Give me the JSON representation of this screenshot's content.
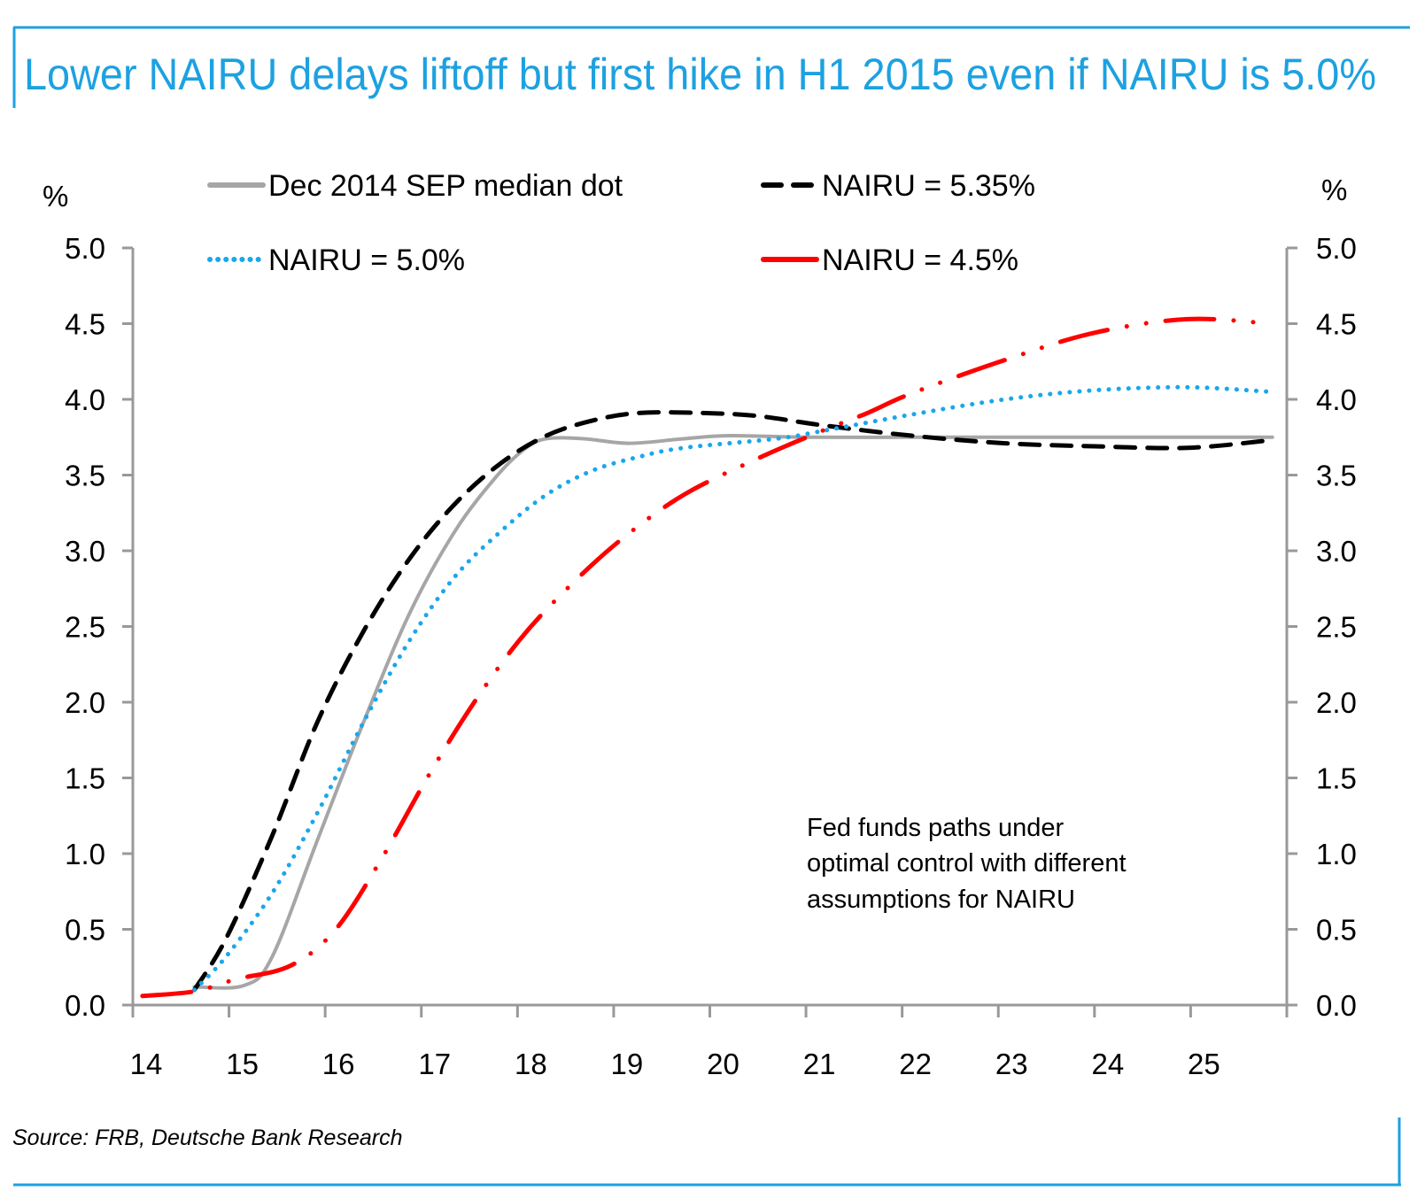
{
  "chart_data": {
    "type": "line",
    "title": "Lower NAIRU delays liftoff but first hike in H1 2015 even if NAIRU is 5.0%",
    "ylabel_left": "%",
    "ylabel_right": "%",
    "xlabel": "",
    "xlim": [
      14,
      26
    ],
    "ylim": [
      0,
      5
    ],
    "x_ticks": [
      "14",
      "15",
      "16",
      "17",
      "18",
      "19",
      "20",
      "21",
      "22",
      "23",
      "24",
      "25"
    ],
    "y_ticks": [
      "0.0",
      "0.5",
      "1.0",
      "1.5",
      "2.0",
      "2.5",
      "3.0",
      "3.5",
      "4.0",
      "4.5",
      "5.0"
    ],
    "grid": false,
    "legend_position": "top",
    "annotation": [
      "Fed funds paths under",
      "optimal control with different",
      "assumptions for NAIRU"
    ],
    "source": "Source: FRB,  Deutsche Bank Research",
    "colors": {
      "title": "#1da1e0",
      "frame": "#1da1e0",
      "axis": "#999999"
    },
    "series": [
      {
        "name": "Dec 2014 SEP median dot",
        "color": "#a6a6a6",
        "style": "solid",
        "x": [
          14.64,
          15.16,
          15.45,
          15.92,
          16.4,
          16.88,
          17.35,
          17.78,
          18.07,
          18.3,
          18.69,
          19.16,
          19.73,
          20.2,
          21,
          22,
          23,
          24,
          25,
          25.85
        ],
        "y": [
          0.12,
          0.13,
          0.32,
          1.09,
          1.87,
          2.59,
          3.13,
          3.49,
          3.67,
          3.74,
          3.74,
          3.71,
          3.74,
          3.76,
          3.75,
          3.75,
          3.75,
          3.75,
          3.75,
          3.75
        ]
      },
      {
        "name": "NAIRU = 5.35%",
        "color": "#000000",
        "style": "dashed",
        "x": [
          14.64,
          14.97,
          15.45,
          15.92,
          16.4,
          16.88,
          17.35,
          17.83,
          18.3,
          18.78,
          19.26,
          19.92,
          20.5,
          21.16,
          22.1,
          23.07,
          24.0,
          24.97,
          25.83
        ],
        "y": [
          0.1,
          0.44,
          1.12,
          1.87,
          2.47,
          2.95,
          3.31,
          3.58,
          3.76,
          3.86,
          3.91,
          3.91,
          3.89,
          3.83,
          3.76,
          3.71,
          3.69,
          3.68,
          3.73
        ]
      },
      {
        "name": "NAIRU = 5.0%",
        "color": "#1aa7ec",
        "style": "dotted",
        "x": [
          14.64,
          14.97,
          15.45,
          15.92,
          16.4,
          16.88,
          17.35,
          17.83,
          18.3,
          18.78,
          19.26,
          19.73,
          20.69,
          21.16,
          22.1,
          23.07,
          24.0,
          24.97,
          25.83
        ],
        "y": [
          0.1,
          0.32,
          0.74,
          1.27,
          1.87,
          2.41,
          2.83,
          3.13,
          3.37,
          3.53,
          3.62,
          3.68,
          3.74,
          3.79,
          3.9,
          4.0,
          4.06,
          4.08,
          4.05
        ]
      },
      {
        "name": "NAIRU = 4.5%",
        "color": "#ff0000",
        "style": "dash-dot",
        "x": [
          14.1,
          14.64,
          15.07,
          15.64,
          16.11,
          16.59,
          17.07,
          17.54,
          18.02,
          18.5,
          19.07,
          19.73,
          20.5,
          21.16,
          21.64,
          22.1,
          23.07,
          24.0,
          24.97,
          25.83
        ],
        "y": [
          0.06,
          0.09,
          0.17,
          0.26,
          0.5,
          0.97,
          1.51,
          1.99,
          2.41,
          2.74,
          3.07,
          3.37,
          3.61,
          3.79,
          3.91,
          4.04,
          4.26,
          4.44,
          4.53,
          4.5
        ]
      }
    ]
  }
}
